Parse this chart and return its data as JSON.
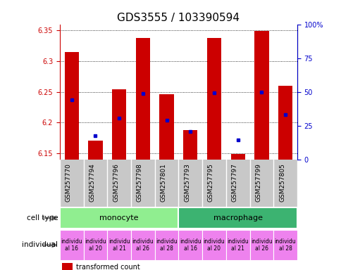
{
  "title": "GDS3555 / 103390594",
  "samples": [
    "GSM257770",
    "GSM257794",
    "GSM257796",
    "GSM257798",
    "GSM257801",
    "GSM257793",
    "GSM257795",
    "GSM257797",
    "GSM257799",
    "GSM257805"
  ],
  "red_values": [
    6.315,
    6.171,
    6.254,
    6.338,
    6.246,
    6.188,
    6.338,
    6.149,
    6.349,
    6.26
  ],
  "blue_values": [
    6.237,
    6.178,
    6.207,
    6.247,
    6.204,
    6.185,
    6.248,
    6.172,
    6.249,
    6.213
  ],
  "ylim_left": [
    6.14,
    6.36
  ],
  "ylim_right": [
    0,
    100
  ],
  "yticks_left": [
    6.15,
    6.2,
    6.25,
    6.3,
    6.35
  ],
  "yticks_right": [
    0,
    25,
    50,
    75,
    100
  ],
  "right_tick_labels": [
    "0",
    "25",
    "50",
    "75",
    "100%"
  ],
  "bar_color": "#CC0000",
  "blue_marker_color": "#0000CC",
  "bar_bottom": 6.14,
  "bar_width": 0.6,
  "background_color": "#FFFFFF",
  "plot_bg_color": "#FFFFFF",
  "mono_color": "#90EE90",
  "macro_color": "#3CB371",
  "indiv_color": "#EE82EE",
  "xtick_bg": "#C8C8C8",
  "label_font_size": 6.5,
  "tick_font_size": 7,
  "title_font_size": 11,
  "indiv_labels": [
    "individu\nal 16",
    "individu\nal 20",
    "individu\nal 21",
    "individu\nal 26",
    "individu\nal 28",
    "individu\nal 16",
    "individu\nal 20",
    "individu\nal 21",
    "individu\nal 26",
    "individu\nal 28"
  ]
}
